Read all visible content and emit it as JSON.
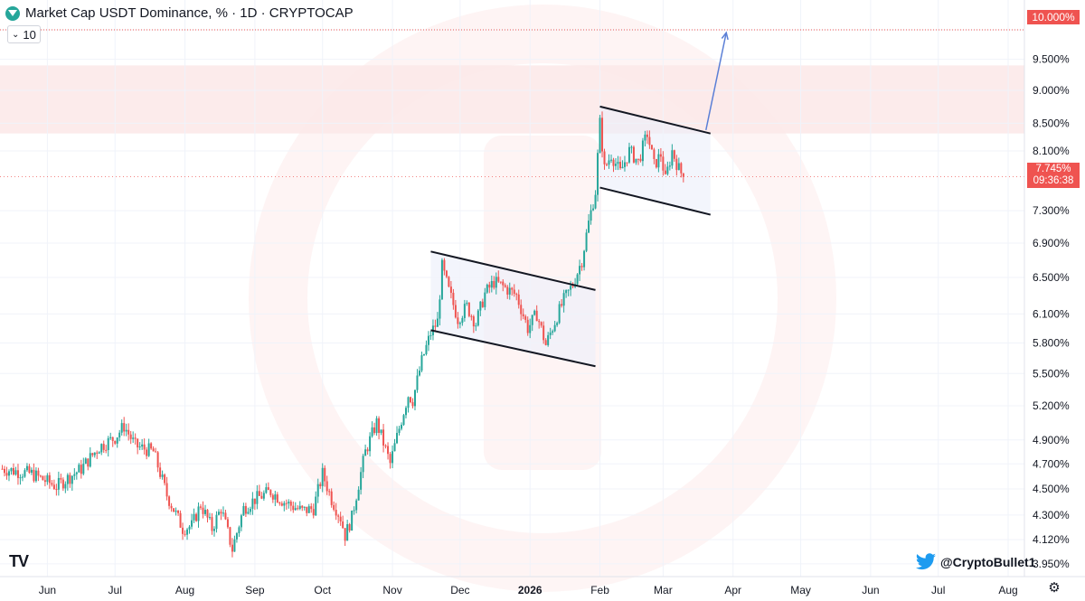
{
  "header": {
    "title": "Market Cap USDT Dominance, % · 1D · CRYPTOCAP",
    "interval_value": "10"
  },
  "colors": {
    "up": "#26a69a",
    "down": "#ef5350",
    "zone": "#fce8e8",
    "channel_fill": "#ebeffa",
    "projection": "#5b7fd6",
    "target_line": "#ef5350"
  },
  "icons": {
    "logo": "tether-logo-icon",
    "interval_chevron": "chevron-down-icon",
    "twitter": "twitter-bird-icon",
    "settings": "gear-icon",
    "tradingview": "tradingview-logo-icon"
  },
  "last_price": {
    "value": "7.745%",
    "countdown": "09:36:38"
  },
  "target_label": "10.000%",
  "branding": {
    "tv_logo": "TV",
    "credit": "@CryptoBullet1"
  },
  "chart_data": {
    "type": "candlestick",
    "title": "Market Cap USDT Dominance, % · 1D · CRYPTOCAP",
    "xlabel": "",
    "ylabel": "",
    "y_scale": "log",
    "ylim": [
      3.9,
      10.4
    ],
    "y_ticks": [
      "10.000%",
      "9.500%",
      "9.000%",
      "8.500%",
      "8.100%",
      "7.745%",
      "7.300%",
      "6.900%",
      "6.500%",
      "6.100%",
      "5.800%",
      "5.500%",
      "5.200%",
      "4.900%",
      "4.700%",
      "4.500%",
      "4.300%",
      "4.120%",
      "3.950%"
    ],
    "y_tick_values": [
      10.0,
      9.5,
      9.0,
      8.5,
      8.1,
      7.745,
      7.3,
      6.9,
      6.5,
      6.1,
      5.8,
      5.5,
      5.2,
      4.9,
      4.7,
      4.5,
      4.3,
      4.12,
      3.95
    ],
    "x_ticks": [
      {
        "label": "Jun",
        "date": "2025-06-01"
      },
      {
        "label": "Jul",
        "date": "2025-07-01"
      },
      {
        "label": "Aug",
        "date": "2025-08-01"
      },
      {
        "label": "Sep",
        "date": "2025-09-01"
      },
      {
        "label": "Oct",
        "date": "2025-10-01"
      },
      {
        "label": "Nov",
        "date": "2025-11-01"
      },
      {
        "label": "Dec",
        "date": "2025-12-01"
      },
      {
        "label": "2026",
        "date": "2026-01-01",
        "bold": true
      },
      {
        "label": "Feb",
        "date": "2026-02-01"
      },
      {
        "label": "Mar",
        "date": "2026-03-01"
      },
      {
        "label": "Apr",
        "date": "2026-04-01"
      },
      {
        "label": "May",
        "date": "2026-05-01"
      },
      {
        "label": "Jun",
        "date": "2026-06-01"
      },
      {
        "label": "Jul",
        "date": "2026-07-01"
      },
      {
        "label": "Aug",
        "date": "2026-08-01"
      }
    ],
    "series": [
      {
        "type": "close_path",
        "points": [
          [
            "2025-05-12",
            4.66
          ],
          [
            "2025-05-25",
            4.62
          ],
          [
            "2025-06-05",
            4.52
          ],
          [
            "2025-06-16",
            4.66
          ],
          [
            "2025-06-24",
            4.84
          ],
          [
            "2025-07-01",
            4.92
          ],
          [
            "2025-07-05",
            5.02
          ],
          [
            "2025-07-10",
            4.85
          ],
          [
            "2025-07-18",
            4.8
          ],
          [
            "2025-07-24",
            4.45
          ],
          [
            "2025-07-31",
            4.2
          ],
          [
            "2025-08-04",
            4.22
          ],
          [
            "2025-08-08",
            4.38
          ],
          [
            "2025-08-13",
            4.2
          ],
          [
            "2025-08-17",
            4.35
          ],
          [
            "2025-08-22",
            4.05
          ],
          [
            "2025-08-27",
            4.35
          ],
          [
            "2025-09-01",
            4.42
          ],
          [
            "2025-09-08",
            4.48
          ],
          [
            "2025-09-14",
            4.4
          ],
          [
            "2025-09-22",
            4.33
          ],
          [
            "2025-09-27",
            4.35
          ],
          [
            "2025-10-01",
            4.62
          ],
          [
            "2025-10-05",
            4.42
          ],
          [
            "2025-10-09",
            4.28
          ],
          [
            "2025-10-11",
            4.15
          ],
          [
            "2025-10-14",
            4.28
          ],
          [
            "2025-10-20",
            4.8
          ],
          [
            "2025-10-25",
            5.05
          ],
          [
            "2025-10-31",
            4.7
          ],
          [
            "2025-11-04",
            5.0
          ],
          [
            "2025-11-08",
            5.3
          ],
          [
            "2025-11-10",
            5.25
          ],
          [
            "2025-11-14",
            5.62
          ],
          [
            "2025-11-18",
            5.9
          ],
          [
            "2025-11-21",
            6.02
          ],
          [
            "2025-11-23",
            6.62
          ],
          [
            "2025-11-26",
            6.35
          ],
          [
            "2025-11-30",
            6.05
          ],
          [
            "2025-12-04",
            6.18
          ],
          [
            "2025-12-08",
            6.0
          ],
          [
            "2025-12-12",
            6.32
          ],
          [
            "2025-12-16",
            6.45
          ],
          [
            "2025-12-20",
            6.4
          ],
          [
            "2025-12-26",
            6.3
          ],
          [
            "2025-12-31",
            5.95
          ],
          [
            "2026-01-04",
            6.1
          ],
          [
            "2026-01-08",
            5.78
          ],
          [
            "2026-01-12",
            6.02
          ],
          [
            "2026-01-16",
            6.25
          ],
          [
            "2026-01-20",
            6.42
          ],
          [
            "2026-01-24",
            6.7
          ],
          [
            "2026-01-27",
            7.15
          ],
          [
            "2026-01-30",
            7.55
          ],
          [
            "2026-02-01",
            8.5
          ],
          [
            "2026-02-03",
            7.85
          ],
          [
            "2026-02-06",
            8.05
          ],
          [
            "2026-02-10",
            7.8
          ],
          [
            "2026-02-14",
            8.1
          ],
          [
            "2026-02-18",
            7.95
          ],
          [
            "2026-02-22",
            8.35
          ],
          [
            "2026-02-25",
            7.9
          ],
          [
            "2026-02-28",
            8.05
          ],
          [
            "2026-03-02",
            7.7
          ],
          [
            "2026-03-05",
            8.1
          ],
          [
            "2026-03-08",
            7.85
          ],
          [
            "2026-03-10",
            7.745
          ]
        ]
      }
    ],
    "annotations": {
      "resistance_zone": [
        8.35,
        9.4
      ],
      "target": 10.0,
      "channels": [
        {
          "upper": [
            [
              "2025-11-18",
              6.8
            ],
            [
              "2026-01-30",
              6.36
            ]
          ],
          "lower": [
            [
              "2025-11-18",
              5.93
            ],
            [
              "2026-01-30",
              5.57
            ]
          ]
        },
        {
          "upper": [
            [
              "2026-02-01",
              8.75
            ],
            [
              "2026-03-22",
              8.35
            ]
          ],
          "lower": [
            [
              "2026-02-01",
              7.6
            ],
            [
              "2026-03-22",
              7.25
            ]
          ]
        }
      ],
      "projection": [
        [
          "2026-03-20",
          8.4
        ],
        [
          "2026-03-29",
          9.95
        ]
      ]
    }
  }
}
